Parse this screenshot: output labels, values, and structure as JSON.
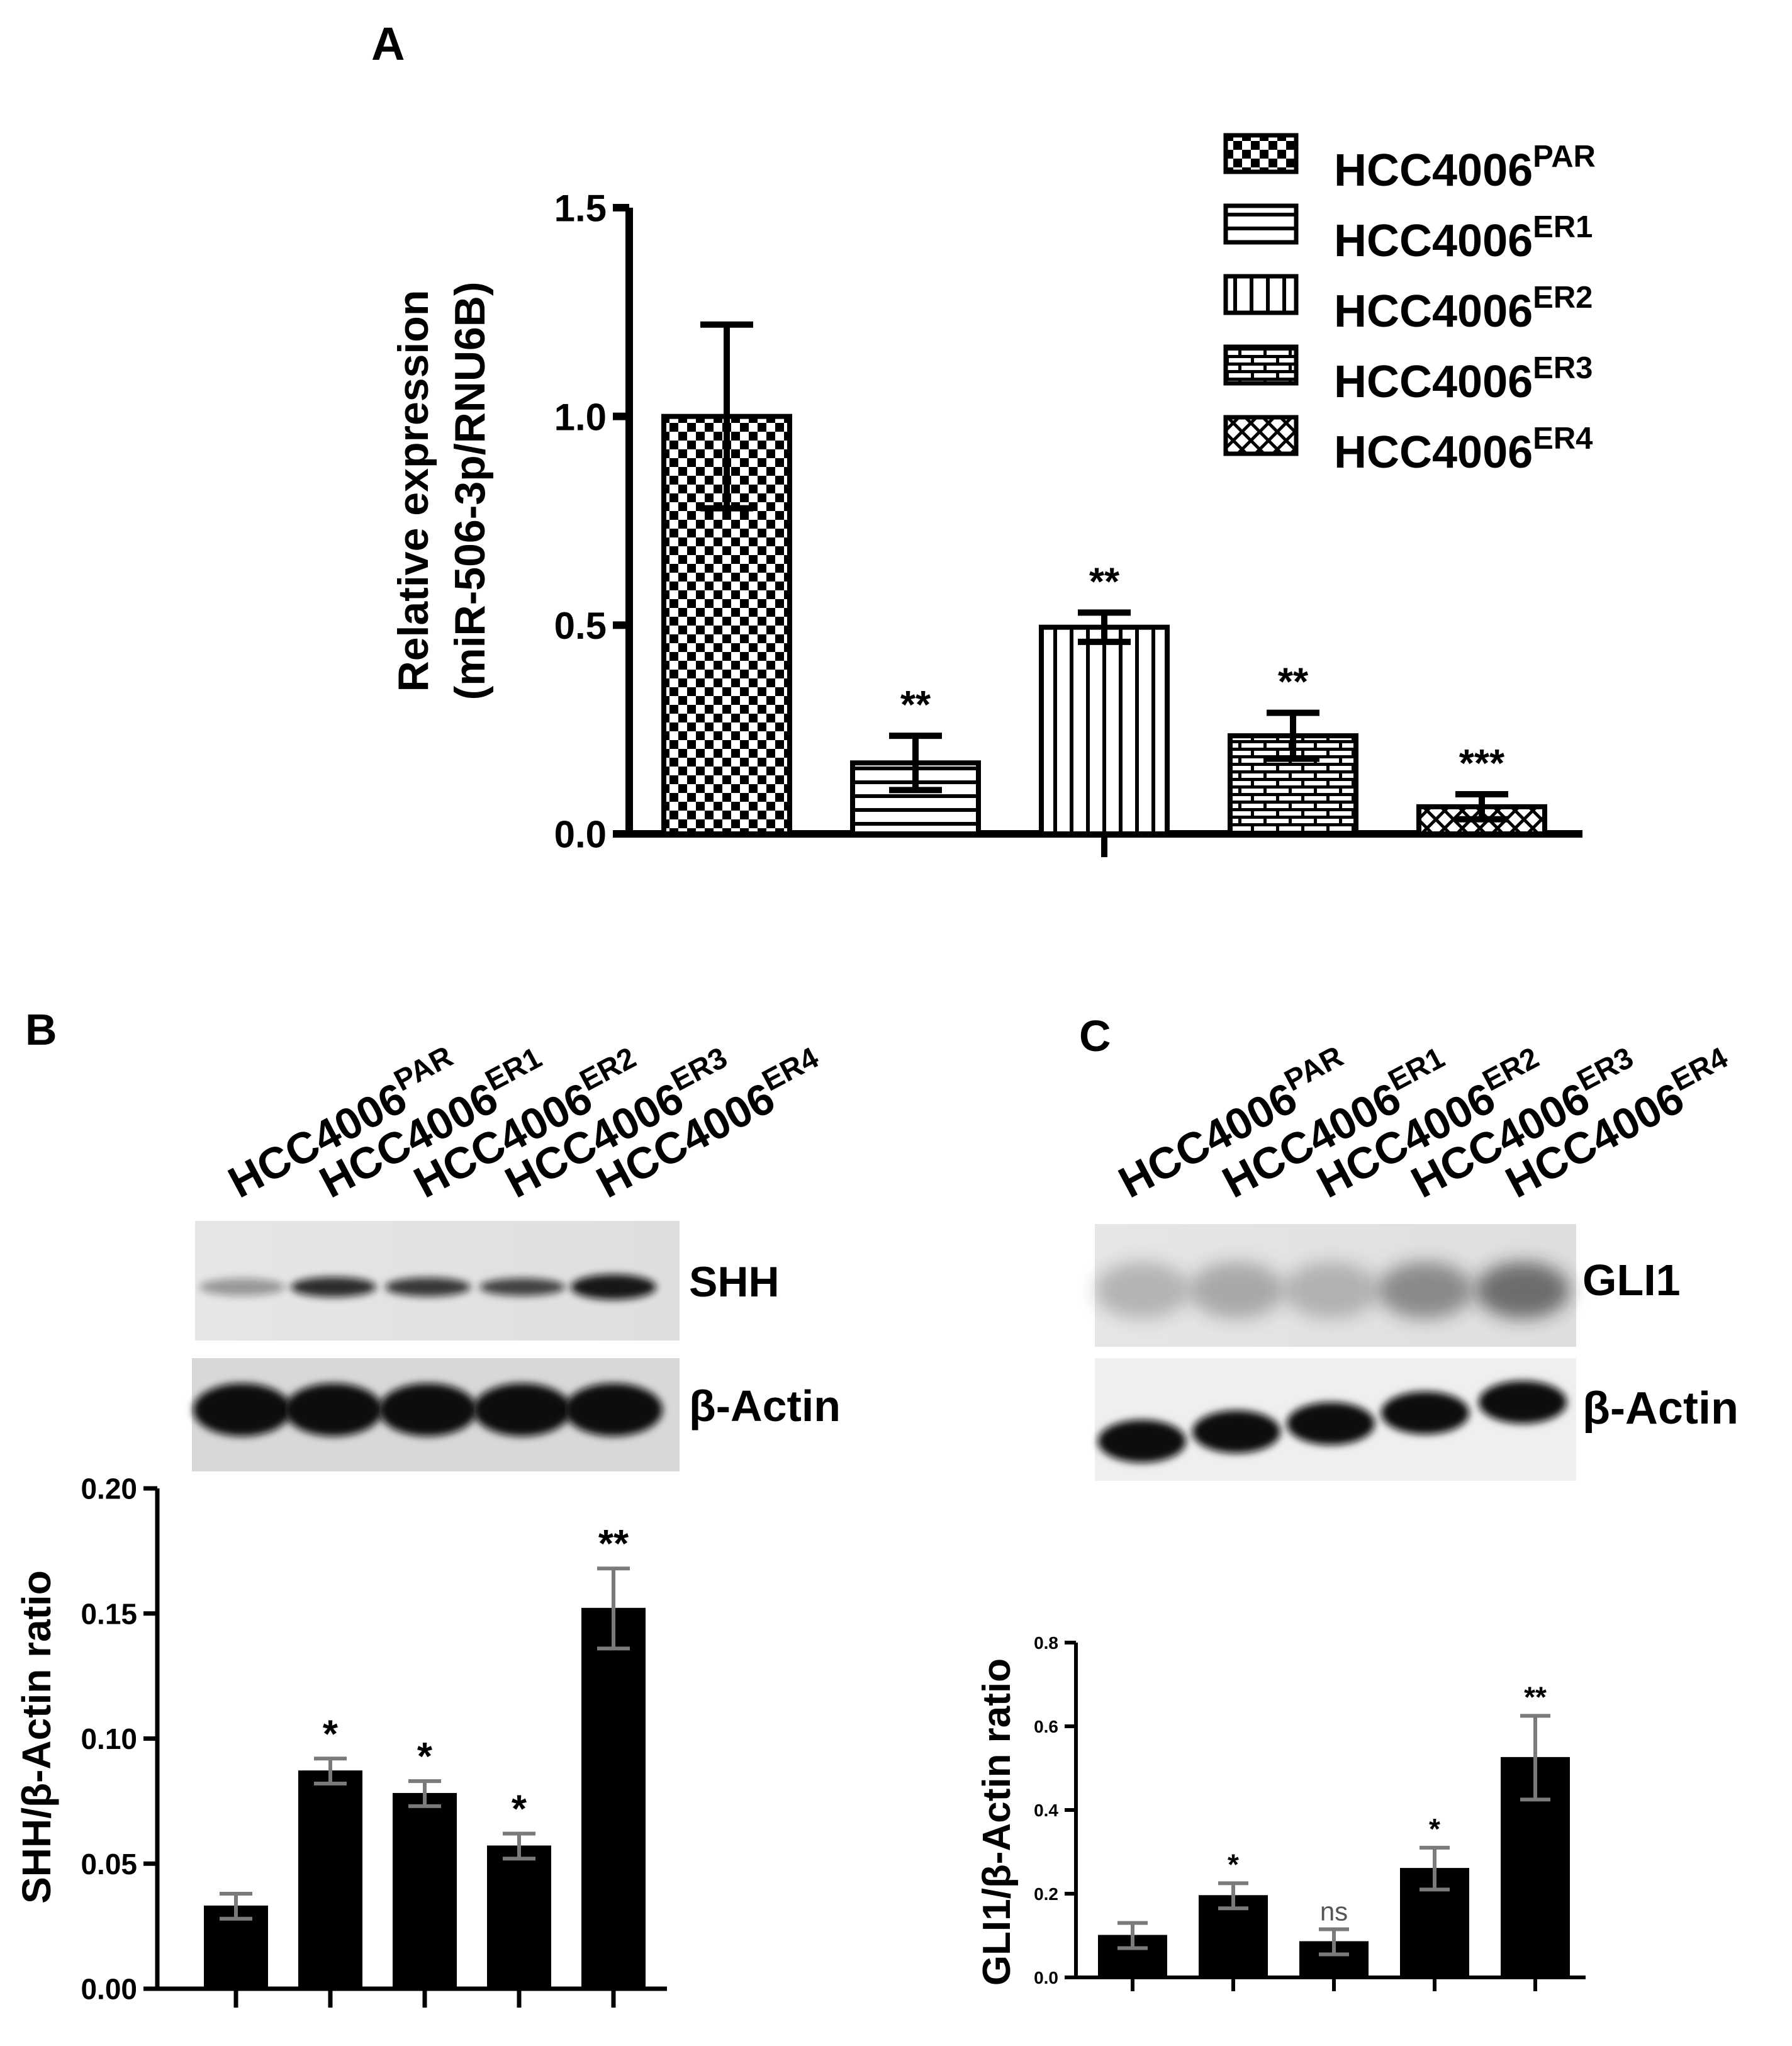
{
  "panels": {
    "a": {
      "label": "A"
    },
    "b": {
      "label": "B",
      "blot_labels": [
        "SHH",
        "β-Actin"
      ]
    },
    "c": {
      "label": "C",
      "blot_labels": [
        "GLI1",
        "β-Actin"
      ]
    }
  },
  "lane_labels": [
    {
      "base": "HCC4006",
      "sup": "PAR"
    },
    {
      "base": "HCC4006",
      "sup": "ER1"
    },
    {
      "base": "HCC4006",
      "sup": "ER2"
    },
    {
      "base": "HCC4006",
      "sup": "ER3"
    },
    {
      "base": "HCC4006",
      "sup": "ER4"
    }
  ],
  "colors": {
    "bar_fill": "#000000",
    "error_bar_bc": "#7a7a7a",
    "axis": "#000000",
    "blot_bg": "#e9e9e9",
    "band": "#111111"
  },
  "chart_data": [
    {
      "id": "A",
      "type": "bar",
      "categories": [
        "HCC4006PAR",
        "HCC4006ER1",
        "HCC4006ER2",
        "HCC4006ER3",
        "HCC4006ER4"
      ],
      "values": [
        1.0,
        0.17,
        0.495,
        0.235,
        0.065
      ],
      "errors": [
        0.22,
        0.065,
        0.035,
        0.055,
        0.03
      ],
      "significance": [
        "",
        "**",
        "**",
        "**",
        "***"
      ],
      "patterns": [
        "checker",
        "hlines",
        "vlines",
        "brick",
        "crosshatch"
      ],
      "ylabel_lines": [
        "Relative expression",
        "(miR-506-3p/RNU6B)"
      ],
      "ylim": [
        0,
        1.5
      ],
      "yticks": [
        "0.0",
        "0.5",
        "1.0",
        "1.5"
      ],
      "legend": {
        "position": "top-right",
        "entries": [
          {
            "base": "HCC4006",
            "sup": "PAR"
          },
          {
            "base": "HCC4006",
            "sup": "ER1"
          },
          {
            "base": "HCC4006",
            "sup": "ER2"
          },
          {
            "base": "HCC4006",
            "sup": "ER3"
          },
          {
            "base": "HCC4006",
            "sup": "ER4"
          }
        ]
      }
    },
    {
      "id": "B",
      "type": "bar",
      "categories": [
        "HCC4006PAR",
        "HCC4006ER1",
        "HCC4006ER2",
        "HCC4006ER3",
        "HCC4006ER4"
      ],
      "values": [
        0.033,
        0.087,
        0.078,
        0.057,
        0.152
      ],
      "errors": [
        0.005,
        0.005,
        0.005,
        0.005,
        0.016
      ],
      "significance": [
        "",
        "*",
        "*",
        "*",
        "**"
      ],
      "ylabel": "SHH/β-Actin ratio",
      "ylim": [
        0,
        0.2
      ],
      "yticks": [
        "0.00",
        "0.05",
        "0.10",
        "0.15",
        "0.20"
      ]
    },
    {
      "id": "C",
      "type": "bar",
      "categories": [
        "HCC4006PAR",
        "HCC4006ER1",
        "HCC4006ER2",
        "HCC4006ER3",
        "HCC4006ER4"
      ],
      "values": [
        0.1,
        0.195,
        0.085,
        0.26,
        0.525
      ],
      "errors": [
        0.03,
        0.03,
        0.03,
        0.05,
        0.1
      ],
      "significance": [
        "",
        "*",
        "ns",
        "*",
        "**"
      ],
      "ylabel": "GLI1/β-Actin ratio",
      "ylim": [
        0,
        0.8
      ],
      "yticks": [
        "0.0",
        "0.2",
        "0.4",
        "0.6",
        "0.8"
      ]
    }
  ]
}
